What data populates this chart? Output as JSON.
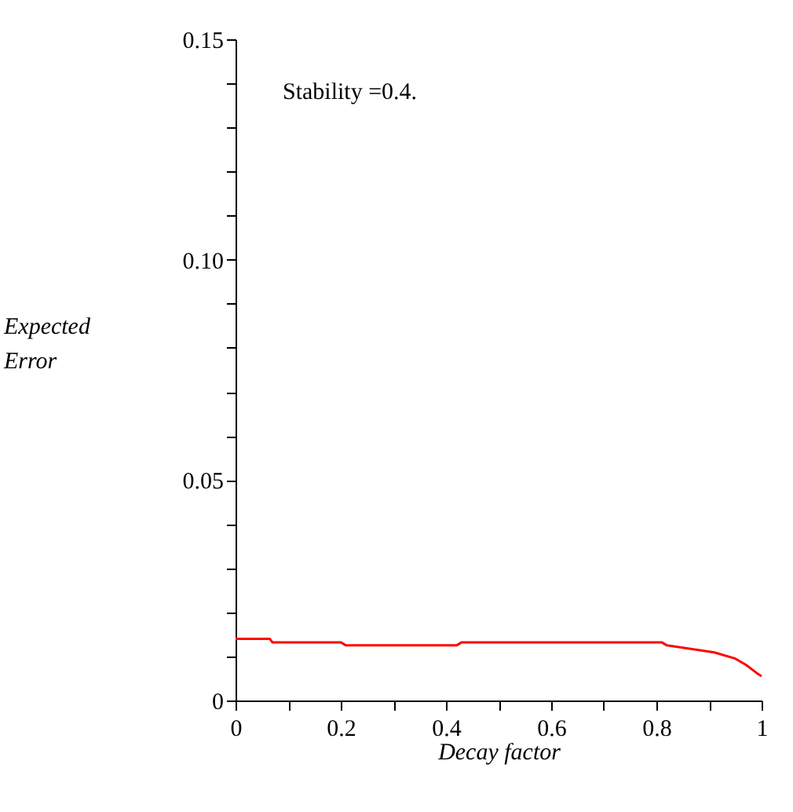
{
  "chart_data": {
    "type": "line",
    "xlabel": "Decay factor",
    "ylabel": "Expected Error",
    "annotations": [
      "Stability =0.4."
    ],
    "x": [
      0,
      0.065,
      0.07,
      0.2,
      0.21,
      0.42,
      0.43,
      0.81,
      0.82,
      0.865,
      0.91,
      0.95,
      0.97,
      0.99,
      1.0
    ],
    "series": [
      {
        "color": "#ff0000",
        "values": [
          0.014,
          0.014,
          0.0132,
          0.0132,
          0.0125,
          0.0125,
          0.0132,
          0.0132,
          0.0125,
          0.0117,
          0.0109,
          0.0095,
          0.0081,
          0.0063,
          0.0055
        ]
      }
    ],
    "xlim": [
      0,
      1
    ],
    "ylim": [
      0,
      0.15
    ],
    "xticks": [
      0,
      {
        "value": 0.1,
        "label": null
      },
      0.2,
      {
        "value": 0.3,
        "label": null
      },
      0.4,
      {
        "value": 0.5,
        "label": null
      },
      0.6,
      {
        "value": 0.7,
        "label": null
      },
      0.8,
      {
        "value": 0.9,
        "label": null
      },
      1
    ],
    "yticks": [
      0,
      {
        "value": 0.01,
        "label": null
      },
      {
        "value": 0.02,
        "label": null
      },
      {
        "value": 0.03,
        "label": null
      },
      {
        "value": 0.04,
        "label": null
      },
      {
        "value": 0.05,
        "label": "0.05"
      },
      {
        "value": 0.06,
        "label": null
      },
      {
        "value": 0.07,
        "label": null
      },
      {
        "value": 0.08,
        "label": null
      },
      {
        "value": 0.09,
        "label": null
      },
      {
        "value": 0.1,
        "label": "0.10"
      },
      {
        "value": 0.11,
        "label": null
      },
      {
        "value": 0.12,
        "label": null
      },
      {
        "value": 0.13,
        "label": null
      },
      {
        "value": 0.14,
        "label": null
      },
      {
        "value": 0.15,
        "label": "0.15"
      }
    ],
    "grid": false,
    "marker": "none",
    "line_style": "solid"
  }
}
